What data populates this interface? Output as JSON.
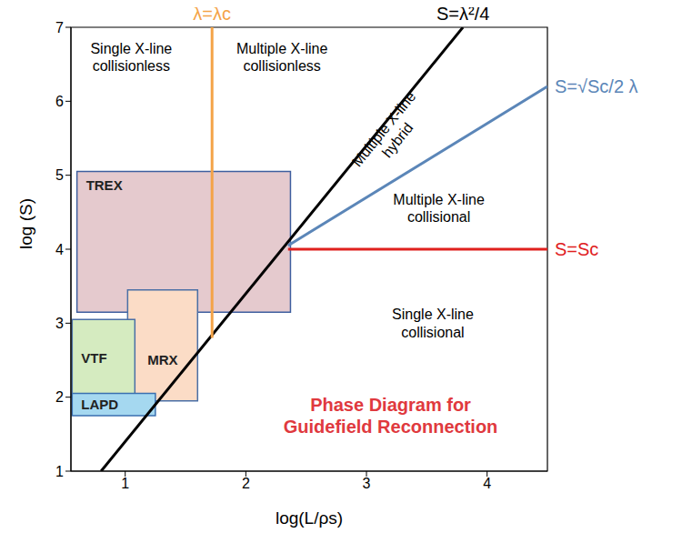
{
  "chart_data": {
    "type": "phase_diagram",
    "title": "Phase Diagram for Guidefield Reconnection",
    "x_label": "log(L/ρs)",
    "y_label": "log (S)",
    "xlim": [
      0.55,
      4.5
    ],
    "xticks": [
      1,
      2,
      3,
      4
    ],
    "ylim": [
      1,
      7
    ],
    "yticks": [
      1,
      2,
      3,
      4,
      5,
      6,
      7
    ],
    "grid": false,
    "series": [
      {
        "name": "S=λ²/4",
        "color": "#000000",
        "x": [
          0.8,
          3.8
        ],
        "values": [
          1,
          7
        ]
      },
      {
        "name": "λ=λc",
        "color": "#f4a347",
        "x": [
          1.72,
          1.72
        ],
        "values": [
          2.8,
          7
        ]
      },
      {
        "name": "S=√Sc/2 λ",
        "color": "#5b86b8",
        "x": [
          2.35,
          4.5
        ],
        "values": [
          4.05,
          6.2
        ]
      },
      {
        "name": "S=Sc",
        "color": "#e0201e",
        "x": [
          2.35,
          4.5
        ],
        "values": [
          4,
          4
        ]
      }
    ],
    "regions": [
      {
        "name": "TREX",
        "x": [
          0.6,
          2.37
        ],
        "y": [
          3.15,
          5.05
        ],
        "color": "#e5cace"
      },
      {
        "name": "MRX",
        "x": [
          1.02,
          1.6
        ],
        "y": [
          1.95,
          3.45
        ],
        "color": "#fbdcc6"
      },
      {
        "name": "VTF",
        "x": [
          0.56,
          1.08
        ],
        "y": [
          2.0,
          3.05
        ],
        "color": "#d5ebc0"
      },
      {
        "name": "LAPD",
        "x": [
          0.56,
          1.25
        ],
        "y": [
          1.75,
          2.05
        ],
        "color": "#a5d8f0"
      }
    ],
    "annotations": [
      {
        "text": [
          "Single X-line",
          "collisionless"
        ]
      },
      {
        "text": [
          "Multiple X-line",
          "collisionless"
        ]
      },
      {
        "text": [
          "Multiple X-line",
          "hybrid"
        ]
      },
      {
        "text": [
          "Multiple X-line",
          "collisional"
        ]
      },
      {
        "text": [
          "Single X-line",
          "collisional"
        ]
      }
    ]
  }
}
